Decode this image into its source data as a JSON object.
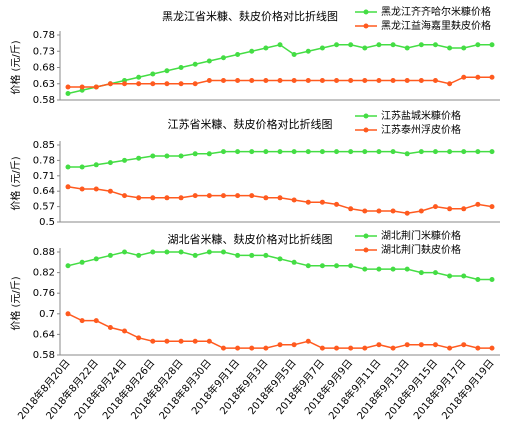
{
  "chart_data": [
    {
      "type": "line",
      "title": "黑龙江省米糠、麸皮价格对比折线图",
      "y_label": "价格 (元/斤)",
      "ylim": [
        0.58,
        0.78
      ],
      "yticks": [
        0.58,
        0.63,
        0.68,
        0.73,
        0.78
      ],
      "grid": false,
      "legend": "upper right",
      "series": [
        {
          "name": "黑龙江齐齐哈尔米糠价格",
          "color": "#44dd44",
          "values": [
            0.6,
            0.61,
            0.62,
            0.63,
            0.64,
            0.65,
            0.66,
            0.67,
            0.68,
            0.69,
            0.7,
            0.71,
            0.72,
            0.73,
            0.74,
            0.75,
            0.72,
            0.73,
            0.74,
            0.75,
            0.75,
            0.74,
            0.75,
            0.75,
            0.74,
            0.75,
            0.75,
            0.74,
            0.74,
            0.75,
            0.75
          ]
        },
        {
          "name": "黑龙江益海嘉里麸皮价格",
          "color": "#ff5a1f",
          "values": [
            0.62,
            0.62,
            0.62,
            0.63,
            0.63,
            0.63,
            0.63,
            0.63,
            0.63,
            0.63,
            0.64,
            0.64,
            0.64,
            0.64,
            0.64,
            0.64,
            0.64,
            0.64,
            0.64,
            0.64,
            0.64,
            0.64,
            0.64,
            0.64,
            0.64,
            0.64,
            0.64,
            0.63,
            0.65,
            0.65,
            0.65
          ]
        }
      ]
    },
    {
      "type": "line",
      "title": "江苏省米糠、麸皮价格对比折线图",
      "y_label": "价格 (元/斤)",
      "ylim": [
        0.5,
        0.85
      ],
      "yticks": [
        0.5,
        0.57,
        0.64,
        0.71,
        0.78,
        0.85
      ],
      "grid": false,
      "legend": "upper right",
      "series": [
        {
          "name": "江苏盐城米糠价格",
          "color": "#44dd44",
          "values": [
            0.75,
            0.75,
            0.76,
            0.77,
            0.78,
            0.79,
            0.8,
            0.8,
            0.8,
            0.81,
            0.81,
            0.82,
            0.82,
            0.82,
            0.82,
            0.82,
            0.82,
            0.82,
            0.82,
            0.82,
            0.82,
            0.82,
            0.82,
            0.82,
            0.81,
            0.82,
            0.82,
            0.82,
            0.82,
            0.82,
            0.82
          ]
        },
        {
          "name": "江苏泰州浮皮价格",
          "color": "#ff5a1f",
          "values": [
            0.66,
            0.65,
            0.65,
            0.64,
            0.62,
            0.61,
            0.61,
            0.61,
            0.61,
            0.62,
            0.62,
            0.62,
            0.62,
            0.62,
            0.61,
            0.61,
            0.6,
            0.59,
            0.59,
            0.58,
            0.56,
            0.55,
            0.55,
            0.55,
            0.54,
            0.55,
            0.57,
            0.56,
            0.56,
            0.58,
            0.57
          ]
        }
      ]
    },
    {
      "type": "line",
      "title": "湖北省米糠、麸皮价格对比折线图",
      "y_label": "价格 (元/斤)",
      "categories": [
        "2018年8月20日",
        null,
        "2018年8月22日",
        null,
        "2018年8月24日",
        null,
        "2018年8月26日",
        null,
        "2018年8月28日",
        null,
        "2018年8月30日",
        null,
        "2018年9月1日",
        null,
        "2018年9月3日",
        null,
        "2018年9月5日",
        null,
        "2018年9月7日",
        null,
        "2018年9月9日",
        null,
        "2018年9月11日",
        null,
        "2018年9月13日",
        null,
        "2018年9月15日",
        null,
        "2018年9月17日",
        null,
        "2018年9月19日"
      ],
      "ylim": [
        0.58,
        0.88
      ],
      "yticks": [
        0.58,
        0.64,
        0.7,
        0.76,
        0.82,
        0.88
      ],
      "grid": false,
      "legend": "upper right",
      "series": [
        {
          "name": "湖北荆门米糠价格",
          "color": "#44dd44",
          "values": [
            0.84,
            0.85,
            0.86,
            0.87,
            0.88,
            0.87,
            0.88,
            0.88,
            0.88,
            0.87,
            0.88,
            0.88,
            0.87,
            0.87,
            0.87,
            0.86,
            0.85,
            0.84,
            0.84,
            0.84,
            0.84,
            0.83,
            0.83,
            0.83,
            0.83,
            0.82,
            0.82,
            0.81,
            0.81,
            0.8,
            0.8
          ]
        },
        {
          "name": "湖北荆门麸皮价格",
          "color": "#ff5a1f",
          "values": [
            0.7,
            0.68,
            0.68,
            0.66,
            0.65,
            0.63,
            0.62,
            0.62,
            0.62,
            0.62,
            0.62,
            0.6,
            0.6,
            0.6,
            0.6,
            0.61,
            0.61,
            0.62,
            0.6,
            0.6,
            0.6,
            0.6,
            0.61,
            0.6,
            0.61,
            0.61,
            0.61,
            0.6,
            0.61,
            0.6,
            0.6
          ]
        }
      ]
    }
  ]
}
